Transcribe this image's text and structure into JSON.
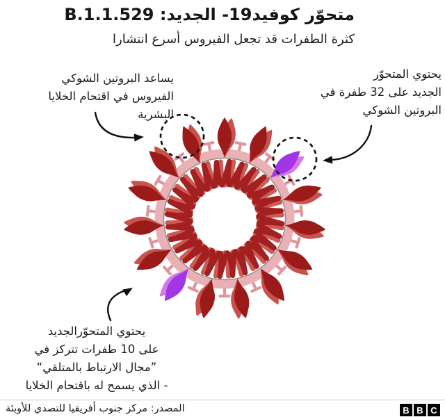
{
  "header": {
    "title": "متحوّر كوفيد19- الجديد: B.1.1.529",
    "subtitle": "كثرة الطفرات قد تجعل الفيروس أسرع انتشارا",
    "variant_name": "B.1.1.529"
  },
  "annotations": {
    "left": {
      "lines": [
        "يساعد البروتين الشوكي",
        "الفيروس في اقتحام الخلايا",
        "البشرية"
      ]
    },
    "right": {
      "lines": [
        "يحتوي المتحوّر",
        "الجديد على 32 طفرة في",
        "البروتين الشوكي"
      ],
      "mutation_count": "32"
    },
    "bottom": {
      "lines": [
        "يحتوي المتحوّرالجديد",
        "على 10 طفرات تتركز في",
        "”مجال الارتباط بالمتلقي“",
        "- الذي يسمح له باقتحام الخلايا"
      ],
      "mutation_count": "10"
    }
  },
  "footer": {
    "source": "المصدر: مركز جنوب أفريقيا للتصدي للأوبئة",
    "logo": [
      "B",
      "B",
      "C"
    ]
  },
  "virus": {
    "colors": {
      "membrane": "#e9b1b5",
      "membrane_edge": "#8c8c8c",
      "pin": "#df959b",
      "spike_dark": "#9b1b1b",
      "spike_light": "#c8524c",
      "mutant_spike_dark": "#a136e4",
      "mutant_spike_light": "#d678ea",
      "rna_dark": "#a32020",
      "rna_light": "#cf5a55",
      "marker": "#111111"
    }
  }
}
